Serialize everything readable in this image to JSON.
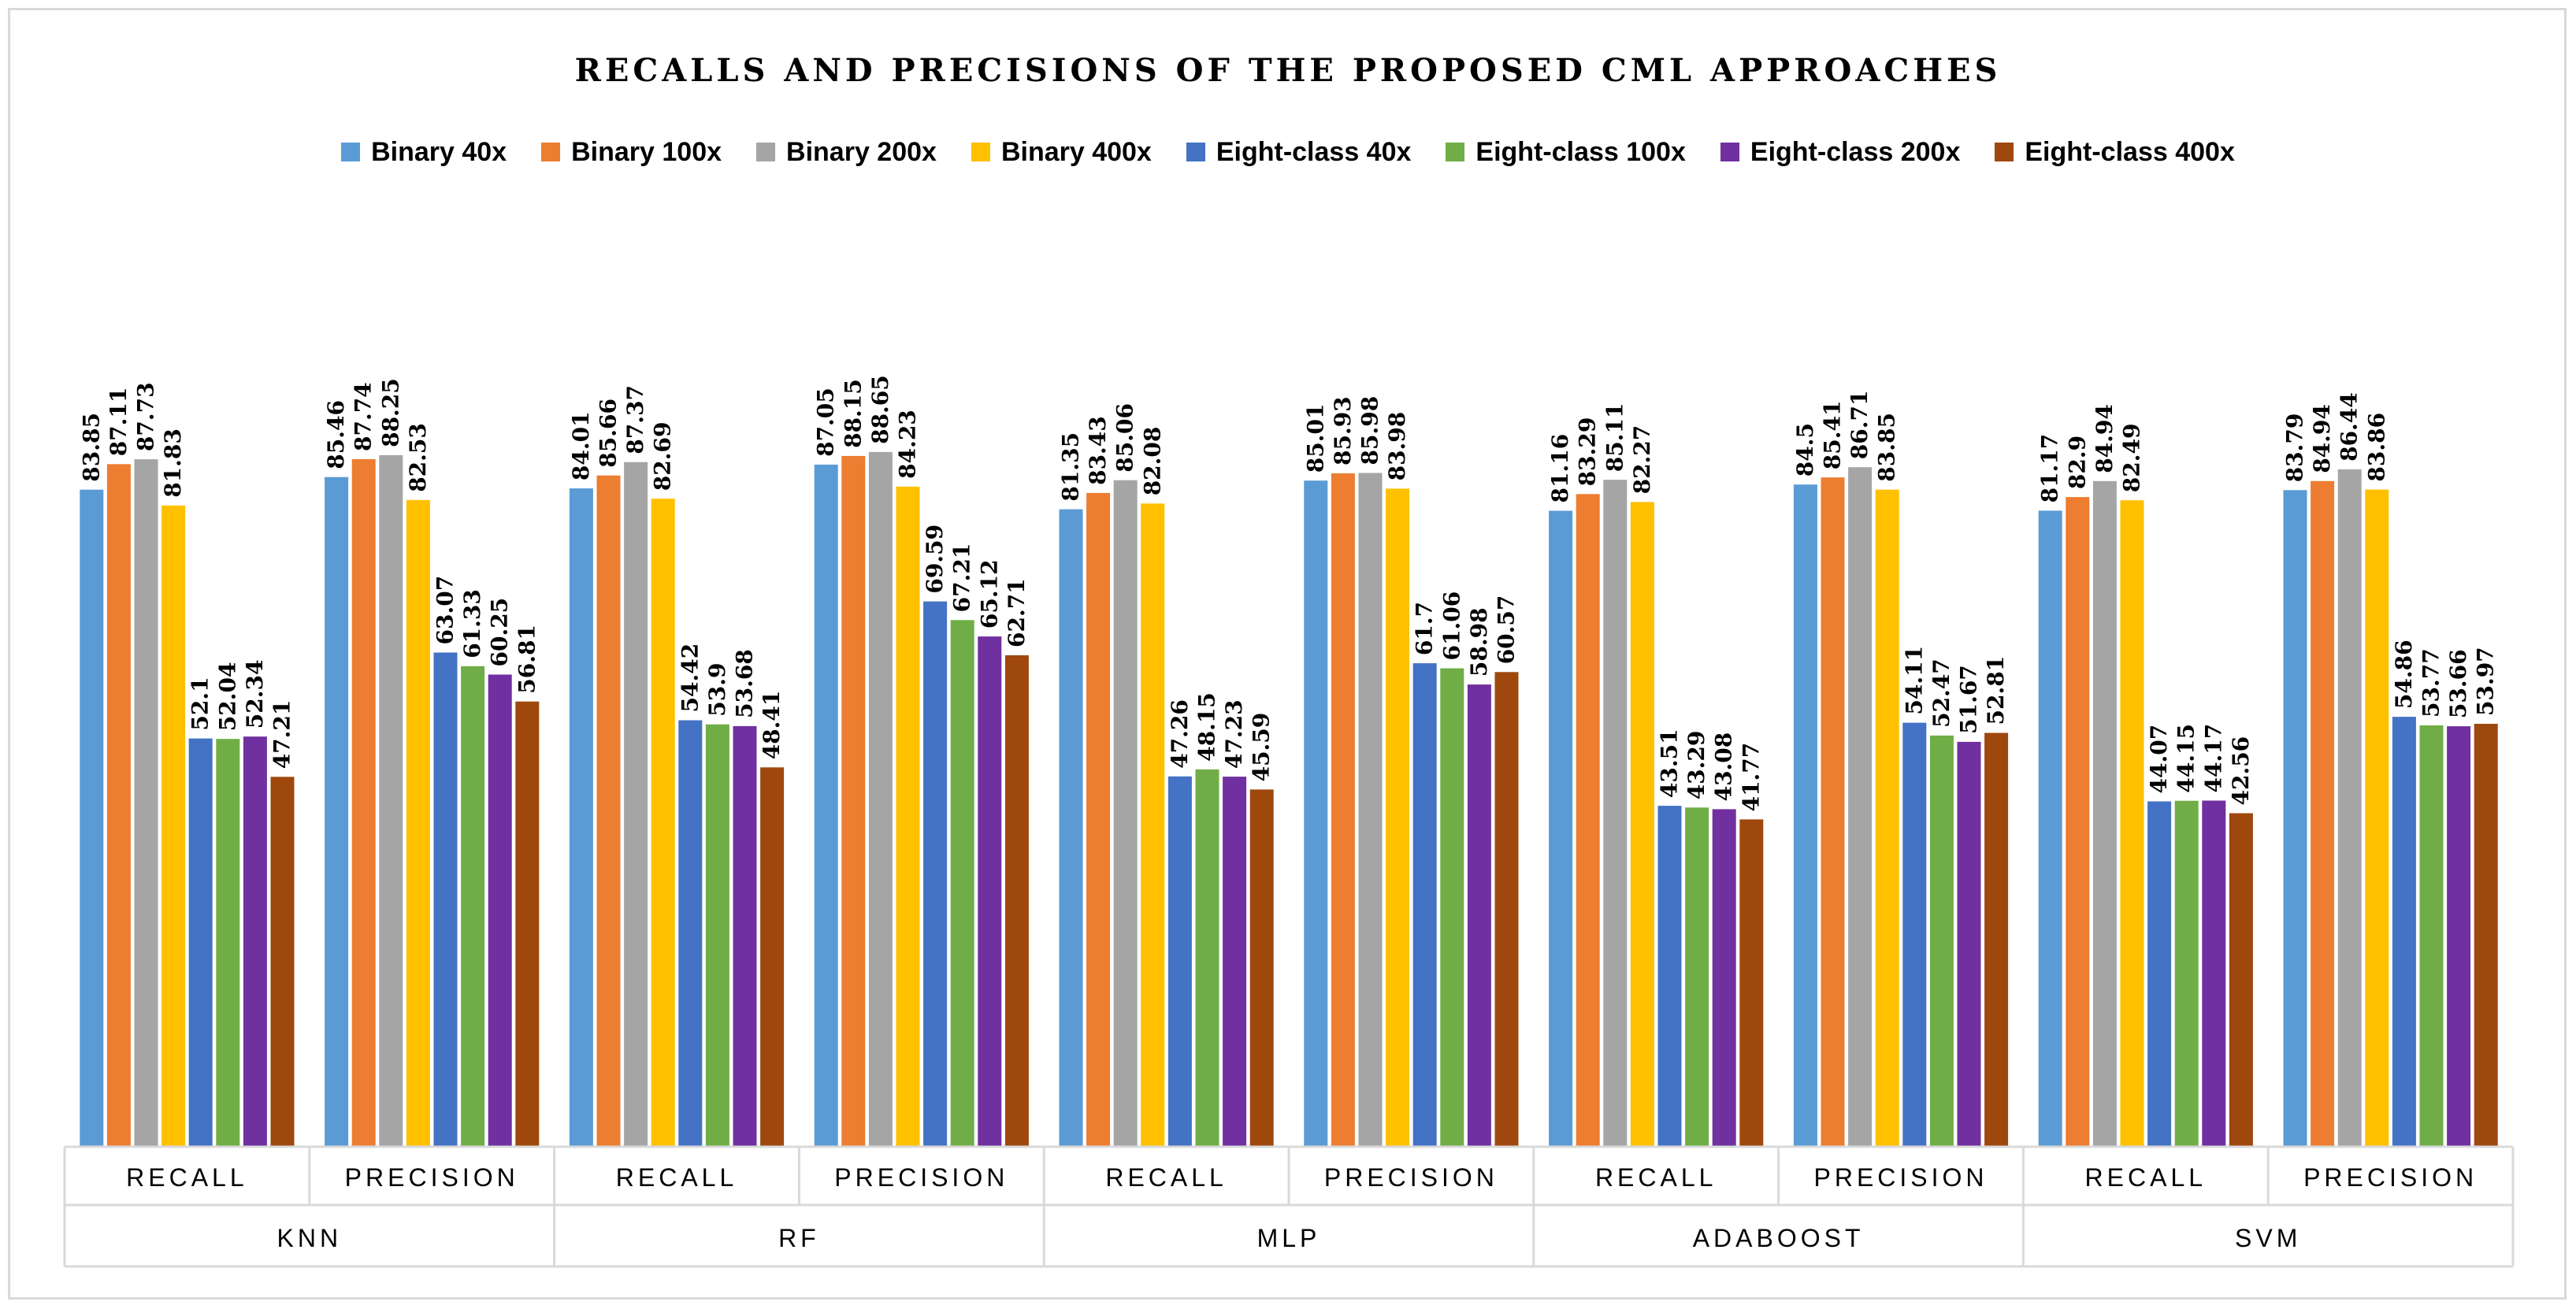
{
  "chart_data": {
    "type": "bar",
    "title": "RECALLS AND PRECISIONS OF THE PROPOSED CML APPROACHES",
    "groups": [
      {
        "name": "KNN",
        "metrics": [
          "RECALL",
          "PRECISION"
        ]
      },
      {
        "name": "RF",
        "metrics": [
          "RECALL",
          "PRECISION"
        ]
      },
      {
        "name": "MLP",
        "metrics": [
          "RECALL",
          "PRECISION"
        ]
      },
      {
        "name": "ADABOOST",
        "metrics": [
          "RECALL",
          "PRECISION"
        ]
      },
      {
        "name": "SVM",
        "metrics": [
          "RECALL",
          "PRECISION"
        ]
      }
    ],
    "categories": [
      "RECALL",
      "PRECISION",
      "RECALL",
      "PRECISION",
      "RECALL",
      "PRECISION",
      "RECALL",
      "PRECISION",
      "RECALL",
      "PRECISION"
    ],
    "series": [
      {
        "name": "Binary 40x",
        "color": "#5b9bd5",
        "values": [
          83.85,
          85.46,
          84.01,
          87.05,
          81.35,
          85.01,
          81.16,
          84.5,
          81.17,
          83.79
        ]
      },
      {
        "name": "Binary 100x",
        "color": "#ed7d31",
        "values": [
          87.11,
          87.74,
          85.66,
          88.15,
          83.43,
          85.93,
          83.29,
          85.41,
          82.9,
          84.94
        ]
      },
      {
        "name": "Binary 200x",
        "color": "#a5a5a5",
        "values": [
          87.73,
          88.25,
          87.37,
          88.65,
          85.06,
          85.98,
          85.11,
          86.71,
          84.94,
          86.44
        ]
      },
      {
        "name": "Binary 400x",
        "color": "#ffc000",
        "values": [
          81.83,
          82.53,
          82.69,
          84.23,
          82.08,
          83.98,
          82.27,
          83.85,
          82.49,
          83.86
        ]
      },
      {
        "name": "Eight-class 40x",
        "color": "#4472c4",
        "values": [
          52.1,
          63.07,
          54.42,
          69.59,
          47.26,
          61.7,
          43.51,
          54.11,
          44.07,
          54.86
        ]
      },
      {
        "name": "Eight-class 100x",
        "color": "#70ad47",
        "values": [
          52.04,
          61.33,
          53.9,
          67.21,
          48.15,
          61.06,
          43.29,
          52.47,
          44.15,
          53.77
        ]
      },
      {
        "name": "Eight-class 200x",
        "color": "#7030a0",
        "values": [
          52.34,
          60.25,
          53.68,
          65.12,
          47.23,
          58.98,
          43.08,
          51.67,
          44.17,
          53.66
        ]
      },
      {
        "name": "Eight-class 400x",
        "color": "#9e480e",
        "values": [
          47.21,
          56.81,
          48.41,
          62.71,
          45.59,
          60.57,
          41.77,
          52.81,
          42.56,
          53.97
        ]
      }
    ],
    "value_labels": [
      [
        "83.85",
        "85.46",
        "84.01",
        "87.05",
        "81.35",
        "85.01",
        "81.16",
        "84.5",
        "81.17",
        "83.79"
      ],
      [
        "87.11",
        "87.74",
        "85.66",
        "88.15",
        "83.43",
        "85.93",
        "83.29",
        "85.41",
        "82.9",
        "84.94"
      ],
      [
        "87.73",
        "88.25",
        "87.37",
        "88.65",
        "85.06",
        "85.98",
        "85.11",
        "86.71",
        "84.94",
        "86.44"
      ],
      [
        "81.83",
        "82.53",
        "82.69",
        "84.23",
        "82.08",
        "83.98",
        "82.27",
        "83.85",
        "82.49",
        "83.86"
      ],
      [
        "52.1",
        "63.07",
        "54.42",
        "69.59",
        "47.26",
        "61.7",
        "43.51",
        "54.11",
        "44.07",
        "54.86"
      ],
      [
        "52.04",
        "61.33",
        "53.9",
        "67.21",
        "48.15",
        "61.06",
        "43.29",
        "52.47",
        "44.15",
        "53.77"
      ],
      [
        "52.34",
        "60.25",
        "53.68",
        "65.12",
        "47.23",
        "58.98",
        "43.08",
        "51.67",
        "44.17",
        "53.66"
      ],
      [
        "47.21",
        "56.81",
        "48.41",
        "62.71",
        "45.59",
        "60.57",
        "41.77",
        "52.81",
        "42.56",
        "53.97"
      ]
    ],
    "ylim": [
      0,
      100
    ],
    "grid": false,
    "legend": "top-center",
    "xlabel": "",
    "ylabel": ""
  }
}
